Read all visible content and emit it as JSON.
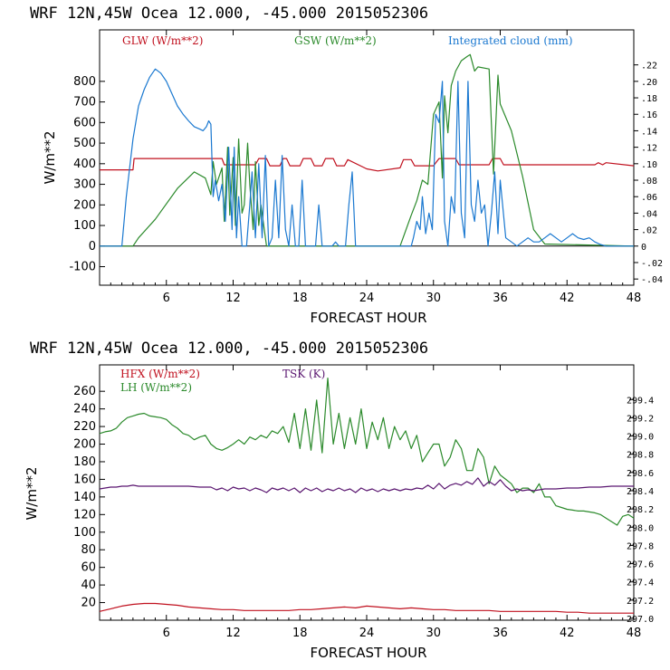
{
  "chart_data": [
    {
      "type": "line",
      "header": "WRF   12N,45W Ocea  12.000, -45.000  2015052306",
      "xlabel": "FORECAST HOUR",
      "ylabel": "W/m**2",
      "xlim": [
        0,
        48
      ],
      "ylim": [
        -190,
        1050
      ],
      "xticks": [
        6,
        12,
        18,
        24,
        30,
        36,
        42,
        48
      ],
      "yticks": [
        -100,
        0,
        100,
        200,
        300,
        400,
        500,
        600,
        700,
        800
      ],
      "right_axis": {
        "ylim": [
          -0.0475,
          0.2625
        ],
        "ticks": [
          -0.04,
          -0.02,
          0.0,
          0.02,
          0.04,
          0.06,
          0.08,
          0.1,
          0.12,
          0.14,
          0.16,
          0.18,
          0.2,
          0.22
        ],
        "labels": [
          "-.04",
          "-.02",
          "0",
          ".02",
          ".04",
          ".06",
          ".08",
          ".10",
          ".12",
          ".14",
          ".16",
          ".18",
          ".20",
          ".22"
        ]
      },
      "series": [
        {
          "name": "GLW (W/m**2)",
          "color": "#c0101e",
          "axis": "left",
          "x": [
            0,
            3,
            3.1,
            11,
            11.2,
            14,
            14.3,
            15,
            15.3,
            16.2,
            16.5,
            16.8,
            17.1,
            18,
            18.3,
            19,
            19.3,
            20,
            20.3,
            21,
            21.3,
            22,
            22.3,
            24,
            25,
            27,
            27.3,
            28,
            28.3,
            30,
            30.5,
            32,
            32.3,
            35,
            35.3,
            36,
            36.3,
            40,
            44.5,
            44.8,
            45.2,
            45.5,
            48
          ],
          "y": [
            370,
            370,
            425,
            425,
            395,
            395,
            425,
            425,
            390,
            390,
            425,
            425,
            390,
            390,
            425,
            425,
            390,
            390,
            425,
            425,
            390,
            390,
            420,
            375,
            365,
            380,
            420,
            420,
            390,
            390,
            425,
            425,
            395,
            395,
            425,
            425,
            395,
            395,
            395,
            405,
            395,
            405,
            390
          ]
        },
        {
          "name": "GSW (W/m**2)",
          "color": "#2b8a2b",
          "axis": "left",
          "x": [
            0,
            3,
            3.5,
            5,
            7,
            8.5,
            9.5,
            10,
            10.2,
            10.5,
            11,
            11.2,
            11.5,
            11.7,
            12,
            12.2,
            12.5,
            12.8,
            13,
            13.3,
            13.5,
            13.8,
            14,
            14.3,
            14.5,
            15,
            16,
            27,
            28,
            28.5,
            29,
            29.5,
            30,
            30.5,
            30.8,
            31,
            31.3,
            31.6,
            32,
            32.5,
            33,
            33.3,
            33.7,
            34,
            35,
            35.4,
            35.8,
            36,
            37,
            38,
            39,
            40,
            48
          ],
          "y": [
            0,
            0,
            40,
            130,
            280,
            360,
            330,
            250,
            410,
            300,
            380,
            120,
            480,
            150,
            430,
            100,
            520,
            160,
            200,
            500,
            300,
            80,
            410,
            100,
            200,
            0,
            0,
            0,
            150,
            220,
            320,
            300,
            640,
            700,
            330,
            730,
            550,
            780,
            850,
            900,
            920,
            930,
            850,
            870,
            860,
            350,
            830,
            690,
            560,
            340,
            80,
            10,
            0
          ]
        },
        {
          "name": "Integrated cloud (mm)",
          "color": "#1a78d0",
          "axis": "right",
          "x": [
            0,
            2,
            2.4,
            3,
            3.5,
            4,
            4.5,
            5,
            5.5,
            6,
            6.5,
            7,
            7.5,
            8,
            8.5,
            9,
            9.3,
            9.6,
            9.8,
            10,
            10.2,
            10.4,
            10.7,
            11,
            11.3,
            11.6,
            11.9,
            12.1,
            12.3,
            12.5,
            12.8,
            13.2,
            13.5,
            13.7,
            14.0,
            14.3,
            14.6,
            14.9,
            15.2,
            15.5,
            15.8,
            16.1,
            16.4,
            16.7,
            17.0,
            17.3,
            17.6,
            17.9,
            18.2,
            18.5,
            18.8,
            19.1,
            19.4,
            19.7,
            20.0,
            20.3,
            20.6,
            20.9,
            21.2,
            21.5,
            21.8,
            22.1,
            22.4,
            22.7,
            23,
            23.3,
            23.6,
            23.9,
            26,
            28,
            28.2,
            28.5,
            28.8,
            29.0,
            29.3,
            29.6,
            29.9,
            30.2,
            30.5,
            30.8,
            31.0,
            31.3,
            31.6,
            31.9,
            32.2,
            32.5,
            32.8,
            33.1,
            33.4,
            33.7,
            34.0,
            34.3,
            34.6,
            34.9,
            35.2,
            35.5,
            35.8,
            36.0,
            36.5,
            37,
            37.5,
            38,
            38.5,
            39,
            39.5,
            40,
            40.5,
            41,
            41.5,
            42,
            42.5,
            43,
            43.5,
            44,
            44.5,
            45,
            45.5,
            46,
            48
          ],
          "y": [
            0,
            0,
            0.06,
            0.13,
            0.17,
            0.19,
            0.205,
            0.215,
            0.21,
            0.2,
            0.185,
            0.17,
            0.16,
            0.152,
            0.145,
            0.142,
            0.14,
            0.145,
            0.152,
            0.148,
            0.06,
            0.08,
            0.055,
            0.075,
            0.03,
            0.12,
            0.02,
            0.12,
            0.01,
            0.06,
            0.0,
            0.0,
            0.05,
            0.09,
            0.01,
            0.1,
            0.01,
            0.11,
            0.0,
            0.01,
            0.08,
            0.01,
            0.11,
            0.02,
            0.0,
            0.05,
            0.0,
            0.0,
            0.08,
            0.0,
            0.0,
            0.0,
            0.0,
            0.05,
            0.0,
            0.0,
            0.0,
            0.0,
            0.005,
            0.0,
            0.0,
            0.0,
            0.05,
            0.09,
            0.0,
            0.0,
            0.0,
            0.0,
            0.0,
            0.0,
            0.01,
            0.03,
            0.02,
            0.06,
            0.015,
            0.04,
            0.02,
            0.16,
            0.15,
            0.2,
            0.03,
            0.0,
            0.06,
            0.04,
            0.2,
            0.04,
            0.01,
            0.2,
            0.05,
            0.03,
            0.08,
            0.04,
            0.05,
            0.0,
            0.04,
            0.09,
            0.015,
            0.08,
            0.01,
            0.005,
            0.0,
            0.005,
            0.01,
            0.005,
            0.005,
            0.01,
            0.015,
            0.01,
            0.005,
            0.01,
            0.015,
            0.01,
            0.008,
            0.01,
            0.005,
            0.002,
            0.0,
            0.0,
            0.0
          ]
        }
      ]
    },
    {
      "type": "line",
      "header": "WRF   12N,45W Ocea  12.000, -45.000  2015052306",
      "xlabel": "FORECAST HOUR",
      "ylabel": "W/m**2",
      "xlim": [
        0,
        48
      ],
      "ylim": [
        0,
        290
      ],
      "xticks": [
        6,
        12,
        18,
        24,
        30,
        36,
        42,
        48
      ],
      "yticks": [
        20,
        40,
        60,
        80,
        100,
        120,
        140,
        160,
        180,
        200,
        220,
        240,
        260
      ],
      "right_axis": {
        "ylim": [
          296.98,
          299.78
        ],
        "ticks": [
          297.0,
          297.2,
          297.4,
          297.6,
          297.8,
          298.0,
          298.2,
          298.4,
          298.6,
          298.8,
          299.0,
          299.2,
          299.4
        ],
        "labels": [
          "297.0",
          "297.2",
          "297.4",
          "297.6",
          "297.8",
          "298.0",
          "298.2",
          "298.4",
          "298.6",
          "298.8",
          "299.0",
          "299.2",
          "299.4"
        ]
      },
      "series": [
        {
          "name": "HFX (W/m**2)",
          "color": "#c0101e",
          "axis": "left",
          "x": [
            0,
            1,
            2,
            3,
            4,
            5,
            6,
            7,
            8,
            9,
            10,
            11,
            12,
            13,
            14,
            15,
            16,
            17,
            18,
            19,
            20,
            21,
            22,
            23,
            24,
            25,
            26,
            27,
            28,
            29,
            30,
            31,
            32,
            33,
            34,
            35,
            36,
            37,
            38,
            39,
            40,
            41,
            42,
            43,
            44,
            45,
            46,
            47,
            48
          ],
          "y": [
            10,
            13,
            16,
            18,
            19,
            19,
            18,
            17,
            15,
            14,
            13,
            12,
            12,
            11,
            11,
            11,
            11,
            11,
            12,
            12,
            13,
            14,
            15,
            14,
            16,
            15,
            14,
            13,
            14,
            13,
            12,
            12,
            11,
            11,
            11,
            11,
            10,
            10,
            10,
            10,
            10,
            10,
            9,
            9,
            8,
            8,
            8,
            8,
            8
          ]
        },
        {
          "name": "LH  (W/m**2)",
          "color": "#2b8a2b",
          "axis": "left",
          "x": [
            0,
            0.5,
            1,
            1.5,
            2,
            2.5,
            3,
            3.5,
            4,
            4.5,
            5,
            5.5,
            6,
            6.5,
            7,
            7.5,
            8,
            8.5,
            9,
            9.5,
            10,
            10.5,
            11,
            11.5,
            12,
            12.5,
            13,
            13.5,
            14,
            14.5,
            15,
            15.5,
            16,
            16.5,
            17,
            17.5,
            18,
            18.5,
            19,
            19.5,
            20,
            20.5,
            21,
            21.5,
            22,
            22.5,
            23,
            23.5,
            24,
            24.5,
            25,
            25.5,
            26,
            26.5,
            27,
            27.5,
            28,
            28.5,
            29,
            29.5,
            30,
            30.5,
            31,
            31.5,
            32,
            32.5,
            33,
            33.5,
            34,
            34.5,
            35,
            35.5,
            36,
            36.5,
            37,
            37.5,
            38,
            38.5,
            39,
            39.5,
            40,
            40.5,
            41,
            41.5,
            42,
            42.5,
            43,
            43.5,
            44,
            44.5,
            45,
            45.5,
            46,
            46.5,
            47,
            47.5,
            48
          ],
          "y": [
            212,
            214,
            215,
            218,
            225,
            230,
            232,
            234,
            235,
            232,
            231,
            230,
            228,
            222,
            218,
            212,
            210,
            205,
            208,
            210,
            200,
            195,
            193,
            196,
            200,
            205,
            200,
            208,
            205,
            210,
            207,
            215,
            212,
            220,
            202,
            235,
            195,
            240,
            193,
            250,
            190,
            275,
            200,
            235,
            195,
            230,
            200,
            240,
            195,
            225,
            205,
            230,
            195,
            220,
            205,
            215,
            195,
            210,
            180,
            190,
            200,
            200,
            175,
            185,
            205,
            195,
            170,
            170,
            195,
            185,
            155,
            175,
            165,
            160,
            155,
            145,
            150,
            150,
            145,
            155,
            140,
            140,
            130,
            128,
            126,
            125,
            124,
            124,
            123,
            122,
            120,
            116,
            112,
            108,
            118,
            120,
            116
          ]
        },
        {
          "name": "TSK (K)",
          "color": "#5a1670",
          "axis": "right",
          "x": [
            0,
            0.5,
            1,
            1.5,
            2,
            2.5,
            3,
            3.5,
            4,
            5,
            6,
            7,
            8,
            9,
            10,
            10.5,
            11,
            11.5,
            12,
            12.5,
            13,
            13.5,
            14,
            14.5,
            15,
            15.5,
            16,
            16.5,
            17,
            17.5,
            18,
            18.5,
            19,
            19.5,
            20,
            20.5,
            21,
            21.5,
            22,
            22.5,
            23,
            23.5,
            24,
            24.5,
            25,
            25.5,
            26,
            26.5,
            27,
            27.5,
            28,
            28.5,
            29,
            29.5,
            30,
            30.5,
            31,
            31.5,
            32,
            32.5,
            33,
            33.5,
            34,
            34.5,
            35,
            35.5,
            36,
            36.5,
            37,
            37.5,
            38,
            38.5,
            39,
            40,
            41,
            42,
            43,
            44,
            45,
            46,
            47,
            48
          ],
          "y": [
            298.42,
            298.43,
            298.44,
            298.44,
            298.45,
            298.45,
            298.46,
            298.45,
            298.45,
            298.45,
            298.45,
            298.45,
            298.45,
            298.44,
            298.44,
            298.41,
            298.43,
            298.4,
            298.44,
            298.42,
            298.43,
            298.4,
            298.43,
            298.41,
            298.38,
            298.43,
            298.41,
            298.43,
            298.4,
            298.43,
            298.38,
            298.43,
            298.4,
            298.43,
            298.39,
            298.42,
            298.4,
            298.43,
            298.4,
            298.42,
            298.38,
            298.43,
            298.4,
            298.42,
            298.39,
            298.42,
            298.4,
            298.42,
            298.4,
            298.42,
            298.41,
            298.43,
            298.42,
            298.46,
            298.42,
            298.48,
            298.42,
            298.46,
            298.48,
            298.46,
            298.5,
            298.47,
            298.54,
            298.45,
            298.5,
            298.46,
            298.52,
            298.45,
            298.4,
            298.42,
            298.4,
            298.41,
            298.4,
            298.42,
            298.42,
            298.43,
            298.43,
            298.44,
            298.44,
            298.45,
            298.45,
            298.45
          ]
        }
      ]
    }
  ]
}
